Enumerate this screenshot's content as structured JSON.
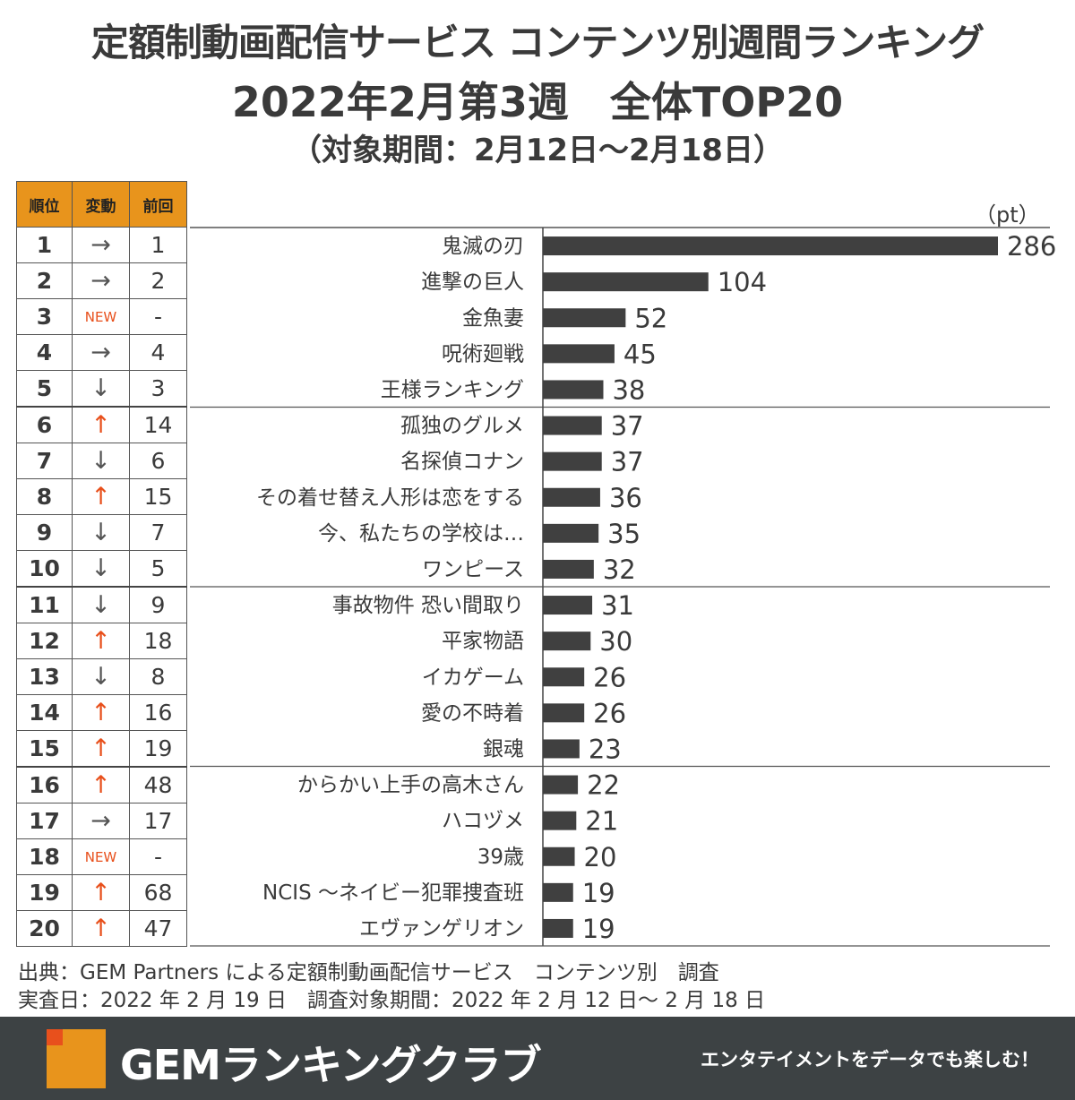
{
  "title": {
    "line1": "定額制動画配信サービス コンテンツ別週間ランキング",
    "line2": "2022年2月第3週　全体TOP20",
    "line3": "（対象期間：2月12日～2月18日）"
  },
  "table": {
    "headers": [
      "順位",
      "変動",
      "前回"
    ],
    "rows": [
      {
        "rank": "1",
        "change": "→",
        "change_type": "same",
        "prev": "1"
      },
      {
        "rank": "2",
        "change": "→",
        "change_type": "same",
        "prev": "2"
      },
      {
        "rank": "3",
        "change": "NEW",
        "change_type": "new",
        "prev": "-"
      },
      {
        "rank": "4",
        "change": "→",
        "change_type": "same",
        "prev": "4"
      },
      {
        "rank": "5",
        "change": "↓",
        "change_type": "down",
        "prev": "3"
      },
      {
        "rank": "6",
        "change": "↑",
        "change_type": "up",
        "prev": "14"
      },
      {
        "rank": "7",
        "change": "↓",
        "change_type": "down",
        "prev": "6"
      },
      {
        "rank": "8",
        "change": "↑",
        "change_type": "up",
        "prev": "15"
      },
      {
        "rank": "9",
        "change": "↓",
        "change_type": "down",
        "prev": "7"
      },
      {
        "rank": "10",
        "change": "↓",
        "change_type": "down",
        "prev": "5"
      },
      {
        "rank": "11",
        "change": "↓",
        "change_type": "down",
        "prev": "9"
      },
      {
        "rank": "12",
        "change": "↑",
        "change_type": "up",
        "prev": "18"
      },
      {
        "rank": "13",
        "change": "↓",
        "change_type": "down",
        "prev": "8"
      },
      {
        "rank": "14",
        "change": "↑",
        "change_type": "up",
        "prev": "16"
      },
      {
        "rank": "15",
        "change": "↑",
        "change_type": "up",
        "prev": "19"
      },
      {
        "rank": "16",
        "change": "↑",
        "change_type": "up",
        "prev": "48"
      },
      {
        "rank": "17",
        "change": "→",
        "change_type": "same",
        "prev": "17"
      },
      {
        "rank": "18",
        "change": "NEW",
        "change_type": "new",
        "prev": "-"
      },
      {
        "rank": "19",
        "change": "↑",
        "change_type": "up",
        "prev": "68"
      },
      {
        "rank": "20",
        "change": "↑",
        "change_type": "up",
        "prev": "47"
      }
    ]
  },
  "chart_data": {
    "type": "bar",
    "orientation": "horizontal",
    "unit_label": "（pt）",
    "categories": [
      "鬼滅の刃",
      "進撃の巨人",
      "金魚妻",
      "呪術廻戦",
      "王様ランキング",
      "孤独のグルメ",
      "名探偵コナン",
      "その着せ替え人形は恋をする",
      "今、私たちの学校は…",
      "ワンピース",
      "事故物件 恐い間取り",
      "平家物語",
      "イカゲーム",
      "愛の不時着",
      "銀魂",
      "からかい上手の高木さん",
      "ハコヅメ",
      "39歳",
      "NCIS ～ネイビー犯罪捜査班",
      "エヴァンゲリオン"
    ],
    "values": [
      286,
      104,
      52,
      45,
      38,
      37,
      37,
      36,
      35,
      32,
      31,
      30,
      26,
      26,
      23,
      22,
      21,
      20,
      19,
      19
    ],
    "xlim": [
      0,
      286
    ],
    "bar_color": "#404040"
  },
  "source": {
    "line1": "出典：GEM Partners による定額制動画配信サービス　コンテンツ別　調査",
    "line2": "実査日：2022 年 2 月 19 日　調査対象期間：2022 年 2 月 12 日～ 2 月 18 日"
  },
  "footer": {
    "brand": "GEMランキングクラブ",
    "tagline": "エンタテイメントをデータでも楽しむ！"
  }
}
